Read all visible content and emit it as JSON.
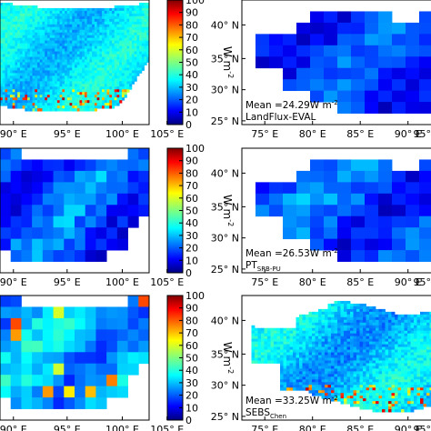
{
  "colorscale": {
    "stops": [
      "#00007f",
      "#0000ff",
      "#007fff",
      "#00ffff",
      "#7fff7f",
      "#ffff00",
      "#ff7f00",
      "#ff0000",
      "#7f0000"
    ]
  },
  "chart_data": [
    {
      "type": "heatmap",
      "title": "",
      "x_ticks": [
        "90° E",
        "95° E",
        "100° E",
        "105° E"
      ],
      "y_ticks": [],
      "colorbar": {
        "ticks": [
          "0",
          "10",
          "20",
          "30",
          "40",
          "50",
          "60",
          "70",
          "80",
          "90",
          "100"
        ],
        "label": "W m",
        "label_sup": "-2",
        "range": [
          0,
          100
        ]
      },
      "annotation": "",
      "source": "",
      "mean": null,
      "resolution": "fine",
      "typical_value_range": [
        25,
        45
      ]
    },
    {
      "type": "heatmap",
      "title": "",
      "x_ticks": [
        "75° E",
        "80° E",
        "85° E",
        "90° E",
        "95°"
      ],
      "y_ticks": [
        "40° N",
        "35° N",
        "30° N",
        "25° N"
      ],
      "colorbar": null,
      "annotation": "Mean =24.29W m",
      "annotation_sup": "-2",
      "source": "LandFlux-EVAL",
      "mean": 24.29,
      "resolution": "coarse",
      "typical_value_range": [
        5,
        30
      ]
    },
    {
      "type": "heatmap",
      "title": "",
      "x_ticks": [
        "90° E",
        "95° E",
        "100° E",
        "105° E"
      ],
      "y_ticks": [],
      "colorbar": {
        "ticks": [
          "0",
          "10",
          "20",
          "30",
          "40",
          "50",
          "60",
          "70",
          "80",
          "90",
          "100"
        ],
        "label": "W m",
        "label_sup": "-2",
        "range": [
          0,
          100
        ]
      },
      "annotation": "",
      "source": "",
      "mean": null,
      "resolution": "coarse",
      "typical_value_range": [
        5,
        35
      ]
    },
    {
      "type": "heatmap",
      "title": "",
      "x_ticks": [
        "75° E",
        "80° E",
        "85° E",
        "90° E",
        "95°"
      ],
      "y_ticks": [
        "40° N",
        "35° N",
        "30° N",
        "25° N"
      ],
      "colorbar": null,
      "annotation": "Mean =26.53W m",
      "annotation_sup": "-2",
      "source": "PT",
      "source_sub": "SRB-PU",
      "mean": 26.53,
      "resolution": "coarse",
      "typical_value_range": [
        5,
        35
      ]
    },
    {
      "type": "heatmap",
      "title": "",
      "x_ticks": [
        "90° E",
        "95° E",
        "100° E",
        "105° E"
      ],
      "y_ticks": [],
      "colorbar": {
        "ticks": [
          "0",
          "10",
          "20",
          "30",
          "40",
          "50",
          "60",
          "70",
          "80",
          "90",
          "100"
        ],
        "label": "W m",
        "label_sup": "-2",
        "range": [
          0,
          100
        ]
      },
      "annotation": "",
      "source": "",
      "mean": null,
      "resolution": "coarse",
      "typical_value_range": [
        15,
        45
      ]
    },
    {
      "type": "heatmap",
      "title": "",
      "x_ticks": [
        "75° E",
        "80° E",
        "85° E",
        "90° E",
        "95°"
      ],
      "y_ticks": [
        "40° N",
        "35° N",
        "30° N",
        "25° N"
      ],
      "colorbar": null,
      "annotation": "Mean =33.25W m",
      "annotation_sup": "-2",
      "source": "SEBS",
      "source_sub": "Chen",
      "mean": 33.25,
      "resolution": "fine",
      "typical_value_range": [
        20,
        45
      ]
    }
  ]
}
